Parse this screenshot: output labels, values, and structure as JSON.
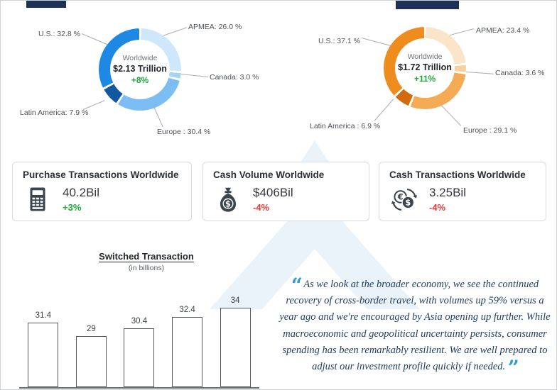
{
  "colors": {
    "positive_green": "#1ea63c",
    "negative_red": "#e23b3b",
    "quote_blue": "#2d9bd8",
    "navy_text": "#1d3c5e",
    "blue_accent": "#1e88e5",
    "orange_accent": "#ee8c1e"
  },
  "chart_data": [
    {
      "type": "pie",
      "subtype": "donut",
      "name": "gdv-donut-left",
      "center": {
        "label": "Worldwide",
        "value": "$2.13 Trillion",
        "change": "+8%"
      },
      "segments": [
        {
          "label": "APMEA",
          "value": 26.0,
          "display": "APMEA: 26.0 %",
          "color": "#cfe7fa"
        },
        {
          "label": "Canada",
          "value": 3.0,
          "display": "Canada: 3.0 %",
          "color": "#a6d4f6"
        },
        {
          "label": "Europe",
          "value": 30.4,
          "display": "Europe : 30.4 %",
          "color": "#7cbdf3"
        },
        {
          "label": "Latin America",
          "value": 7.9,
          "display": "Latin America: 7.9 %",
          "color": "#11589e"
        },
        {
          "label": "U.S.",
          "value": 32.8,
          "display": "U.S.: 32.8 %",
          "color": "#1e88e5"
        }
      ]
    },
    {
      "type": "pie",
      "subtype": "donut",
      "name": "gdv-donut-right",
      "center": {
        "label": "Worldwide",
        "value": "$1.72 Trillion",
        "change": "+11%"
      },
      "segments": [
        {
          "label": "APMEA",
          "value": 23.4,
          "display": "APMEA: 23.4 %",
          "color": "#fbe5ca"
        },
        {
          "label": "Canada",
          "value": 3.6,
          "display": "Canada: 3.6 %",
          "color": "#f9d19e"
        },
        {
          "label": "Europe",
          "value": 29.1,
          "display": "Europe : 29.1 %",
          "color": "#f5ab55"
        },
        {
          "label": "Latin America",
          "value": 6.9,
          "display": "Latin America : 6.9 %",
          "color": "#d26a0e"
        },
        {
          "label": "U.S.",
          "value": 37.1,
          "display": "U.S.: 37.1 %",
          "color": "#ee8c1e"
        }
      ]
    },
    {
      "type": "bar",
      "title": "Switched Transaction",
      "subtitle": "(in billions)",
      "values": [
        31.4,
        29,
        30.4,
        32.4,
        34
      ],
      "grid": false,
      "x_labels_visible": false
    }
  ],
  "cards": [
    {
      "title": "Purchase Transactions Worldwide",
      "value": "40.2Bil",
      "change": "+3%",
      "direction": "up",
      "icon": "pos-terminal-icon"
    },
    {
      "title": "Cash Volume Worldwide",
      "value": "$406Bil",
      "change": "-4%",
      "direction": "down",
      "icon": "money-bag-icon"
    },
    {
      "title": "Cash Transactions Worldwide",
      "value": "3.25Bil",
      "change": "-4%",
      "direction": "down",
      "icon": "currency-exchange-icon"
    }
  ],
  "quote": {
    "open_mark": "“",
    "text": "As we look at the broader economy, we see the continued recovery of cross-border travel, with volumes up 59% versus a year ago and we're encouraged by Asia opening up further. While macroeconomic and geopolitical uncertainty persists, consumer spending has been remarkably resilient. We are well prepared to adjust our investment profile quickly if needed.",
    "close_mark": "”"
  }
}
